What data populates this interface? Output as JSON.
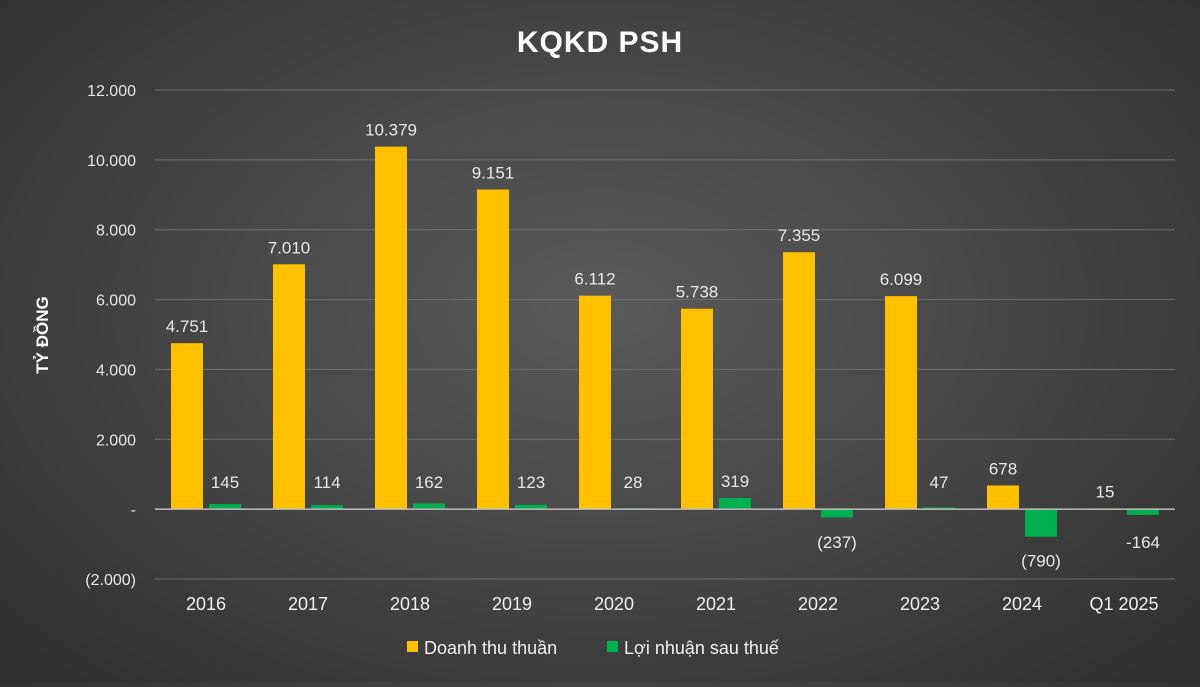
{
  "chart_data": {
    "type": "bar",
    "title": "KQKD PSH",
    "ylabel": "TỶ ĐỒNG",
    "xlabel": "",
    "ylim": [
      -2000,
      12000
    ],
    "yticks": [
      12000,
      10000,
      8000,
      6000,
      4000,
      2000,
      0,
      -2000
    ],
    "ytick_labels": [
      "12.000",
      "10.000",
      "8.000",
      "6.000",
      "4.000",
      "2.000",
      "-",
      "(2.000)"
    ],
    "categories": [
      "2016",
      "2017",
      "2018",
      "2019",
      "2020",
      "2021",
      "2022",
      "2023",
      "2024",
      "Q1 2025"
    ],
    "series": [
      {
        "name": "Doanh thu thuần",
        "color": "#FFC000",
        "values": [
          4751,
          7010,
          10379,
          9151,
          6112,
          5738,
          7355,
          6099,
          678,
          15
        ],
        "labels": [
          "4.751",
          "7.010",
          "10.379",
          "9.151",
          "6.112",
          "5.738",
          "7.355",
          "6.099",
          "678",
          "15"
        ]
      },
      {
        "name": "Lợi nhuận sau thuế",
        "color": "#00B050",
        "values": [
          145,
          114,
          162,
          123,
          28,
          319,
          -237,
          47,
          -790,
          -164
        ],
        "labels": [
          "145",
          "114",
          "162",
          "123",
          "28",
          "319",
          "(237)",
          "47",
          "(790)",
          "-164"
        ]
      }
    ],
    "grid": true,
    "legend_position": "bottom"
  }
}
